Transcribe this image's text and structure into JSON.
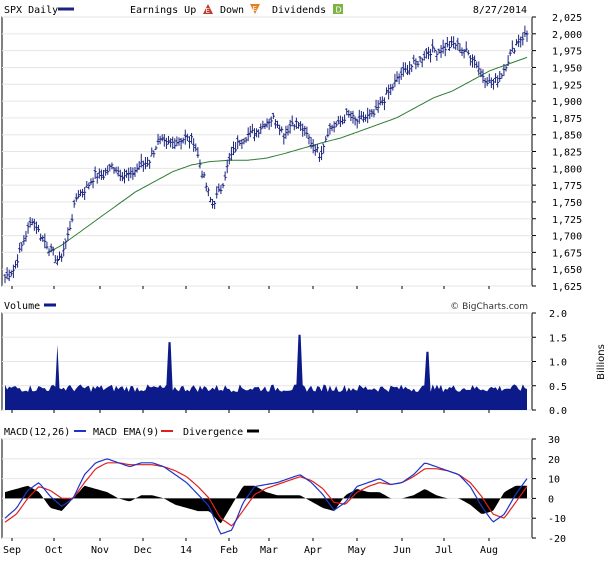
{
  "header": {
    "symbol_label": "SPX Daily",
    "earnings_label": "Earnings Up",
    "earnings_up_badge": "E",
    "down_label": "Down",
    "earnings_down_badge": "E",
    "dividends_label": "Dividends",
    "dividends_badge": "D",
    "date": "8/27/2014"
  },
  "colors": {
    "price": "#1a237e",
    "ma": "#2e7d32",
    "volume": "#0d1a8a",
    "macd": "#1f35c7",
    "macd_ema": "#e02020",
    "divergence": "#000000",
    "earnings_up": "#c0392b",
    "earnings_down": "#e67e22",
    "dividends": "#7cb342"
  },
  "chart_data": [
    {
      "type": "line",
      "name": "price",
      "series_label": "SPX Daily",
      "y_ticks": [
        2025,
        2000,
        1975,
        1950,
        1925,
        1900,
        1875,
        1850,
        1825,
        1800,
        1775,
        1750,
        1725,
        1700,
        1675,
        1650,
        1625
      ],
      "ylim": [
        1625,
        2025
      ],
      "x_month_labels": [
        "Sep",
        "Oct",
        "Nov",
        "Dec",
        "14",
        "Feb",
        "Mar",
        "Apr",
        "May",
        "Jun",
        "Jul",
        "Aug"
      ],
      "close_anchors": [
        1638,
        1650,
        1690,
        1725,
        1700,
        1680,
        1660,
        1700,
        1760,
        1770,
        1790,
        1790,
        1805,
        1790,
        1790,
        1805,
        1810,
        1840,
        1835,
        1840,
        1845,
        1840,
        1790,
        1745,
        1770,
        1815,
        1840,
        1850,
        1855,
        1870,
        1875,
        1850,
        1870,
        1860,
        1840,
        1820,
        1860,
        1865,
        1880,
        1870,
        1875,
        1880,
        1900,
        1920,
        1940,
        1950,
        1960,
        1975,
        1975,
        1980,
        1985,
        1975,
        1965,
        1940,
        1925,
        1935,
        1965,
        1990,
        2000
      ],
      "moving_average_anchors": [
        1650,
        1658,
        1670,
        1685,
        1705,
        1725,
        1745,
        1765,
        1780,
        1795,
        1805,
        1810,
        1812,
        1812,
        1815,
        1822,
        1830,
        1838,
        1845,
        1855,
        1865,
        1875,
        1890,
        1905,
        1915,
        1930,
        1945,
        1955,
        1965
      ]
    },
    {
      "type": "area",
      "name": "volume",
      "series_label": "Volume",
      "credit": "© BigCharts.com",
      "units": "Billions",
      "y_ticks": [
        "2.0",
        "1.5",
        "1.0",
        "0.5",
        "0.0"
      ],
      "ylim": [
        0,
        2
      ],
      "baseline_level": 0.45,
      "spikes": [
        {
          "position": 0.1,
          "value": 1.35
        },
        {
          "position": 0.315,
          "value": 1.4
        },
        {
          "position": 0.565,
          "value": 1.55
        },
        {
          "position": 0.81,
          "value": 1.2
        }
      ]
    },
    {
      "type": "line",
      "name": "macd",
      "legend": {
        "macd_label": "MACD(12,26)",
        "ema_label": "MACD EMA(9)",
        "divergence_label": "Divergence"
      },
      "y_ticks": [
        "30",
        "20",
        "10",
        "0",
        "-10",
        "-20"
      ],
      "ylim": [
        -20,
        30
      ],
      "macd_anchors": [
        -10,
        -5,
        4,
        8,
        1,
        -4,
        0,
        12,
        18,
        20,
        18,
        16,
        18,
        18,
        16,
        12,
        8,
        2,
        -4,
        -18,
        -16,
        -2,
        6,
        7,
        8,
        10,
        12,
        8,
        2,
        -6,
        -2,
        6,
        8,
        10,
        7,
        8,
        12,
        18,
        16,
        14,
        12,
        6,
        -4,
        -12,
        -8,
        2,
        10
      ],
      "ema_anchors": [
        -12,
        -8,
        0,
        6,
        4,
        0,
        0,
        8,
        15,
        18,
        18,
        17,
        17,
        17,
        16,
        14,
        11,
        6,
        0,
        -10,
        -14,
        -6,
        2,
        5,
        7,
        9,
        11,
        9,
        5,
        -2,
        -3,
        3,
        6,
        8,
        7,
        8,
        11,
        15,
        15,
        14,
        12,
        8,
        1,
        -8,
        -10,
        -2,
        6
      ]
    }
  ],
  "x_axis_labels": [
    "Sep",
    "Oct",
    "Nov",
    "Dec",
    "14",
    "Feb",
    "Mar",
    "Apr",
    "May",
    "Jun",
    "Jul",
    "Aug"
  ]
}
